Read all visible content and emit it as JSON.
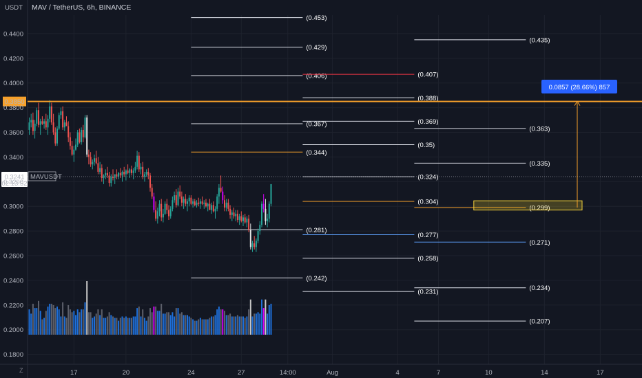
{
  "header": {
    "unit": "USDT",
    "title": "MAV / TetherUS, 6h, BINANCE"
  },
  "footer": {
    "zoom_label": "Z"
  },
  "colors": {
    "background": "#131722",
    "up": "#26a69a",
    "down": "#ef5350",
    "magenta": "#d500f9",
    "white_candle": "#e6e6e6",
    "vol_blue": "#1e6fd9",
    "vol_gray": "#5d606b",
    "orange": "#f7a12b",
    "fib_white": "#e0e3eb",
    "fib_red": "#f23645",
    "fib_blue": "#5b9cf6",
    "measure": "#2962ff"
  },
  "chart_data": {
    "type": "candlestick",
    "ylim": [
      0.172,
      0.455
    ],
    "y_ticks": [
      "0.4400",
      "0.4200",
      "0.4000",
      "0.3800",
      "0.3600",
      "0.3400",
      "0.3200",
      "0.3000",
      "0.2800",
      "0.2600",
      "0.2400",
      "0.2200",
      "0.2000",
      "0.1800"
    ],
    "y_tick_values": [
      0.44,
      0.42,
      0.4,
      0.38,
      0.36,
      0.34,
      0.32,
      0.3,
      0.28,
      0.26,
      0.24,
      0.22,
      0.2,
      0.18
    ],
    "x_ticks": [
      "17",
      "20",
      "24",
      "27",
      "14:00",
      "Aug",
      "4",
      "7",
      "10",
      "14",
      "17"
    ],
    "x_tick_index": [
      24,
      52,
      87,
      114,
      139,
      163,
      198,
      220,
      247,
      277,
      307
    ],
    "current_price": {
      "label": "0.3241",
      "value": 0.3241,
      "symbol": "MAVUSDT",
      "countdown": "02:13:52"
    },
    "horizontal_level": {
      "label": "0.3850",
      "value": 0.385
    },
    "measure": {
      "label": "0.0857 (28.66%) 857",
      "from": 0.299,
      "to": 0.385
    },
    "zone": {
      "low": 0.297,
      "high": 0.3045
    },
    "fib_sets": [
      {
        "x0": 87,
        "x1": 147,
        "levels": [
          {
            "value": 0.453,
            "label": "(0.453)",
            "kind": "white"
          },
          {
            "value": 0.429,
            "label": "(0.429)",
            "kind": "white"
          },
          {
            "value": 0.406,
            "label": "(0.406)",
            "kind": "white"
          },
          {
            "value": 0.367,
            "label": "(0.367)",
            "kind": "white"
          },
          {
            "value": 0.344,
            "label": "(0.344)",
            "kind": "orange"
          },
          {
            "value": 0.281,
            "label": "(0.281)",
            "kind": "white"
          },
          {
            "value": 0.242,
            "label": "(0.242)",
            "kind": "white"
          }
        ]
      },
      {
        "x0": 147,
        "x1": 207,
        "levels": [
          {
            "value": 0.407,
            "label": "(0.407)",
            "kind": "red"
          },
          {
            "value": 0.388,
            "label": "(0.388)",
            "kind": "white"
          },
          {
            "value": 0.369,
            "label": "(0.369)",
            "kind": "white"
          },
          {
            "value": 0.35,
            "label": "(0.35)",
            "kind": "white"
          },
          {
            "value": 0.324,
            "label": "(0.324)",
            "kind": "white"
          },
          {
            "value": 0.304,
            "label": "(0.304)",
            "kind": "orange"
          },
          {
            "value": 0.277,
            "label": "(0.277)",
            "kind": "blue"
          },
          {
            "value": 0.258,
            "label": "(0.258)",
            "kind": "white"
          },
          {
            "value": 0.231,
            "label": "(0.231)",
            "kind": "white"
          }
        ]
      },
      {
        "x0": 207,
        "x1": 267,
        "levels": [
          {
            "value": 0.435,
            "label": "(0.435)",
            "kind": "white"
          },
          {
            "value": 0.363,
            "label": "(0.363)",
            "kind": "white"
          },
          {
            "value": 0.335,
            "label": "(0.335)",
            "kind": "white"
          },
          {
            "value": 0.299,
            "label": "(0.299)",
            "kind": "orange"
          },
          {
            "value": 0.271,
            "label": "(0.271)",
            "kind": "blue"
          },
          {
            "value": 0.234,
            "label": "(0.234)",
            "kind": "white"
          },
          {
            "value": 0.207,
            "label": "(0.207)",
            "kind": "white"
          }
        ]
      }
    ],
    "candles": [
      [
        0.362,
        0.372,
        0.358,
        0.368
      ],
      [
        0.368,
        0.375,
        0.364,
        0.37
      ],
      [
        0.37,
        0.376,
        0.358,
        0.361
      ],
      [
        0.361,
        0.37,
        0.355,
        0.367
      ],
      [
        0.367,
        0.38,
        0.365,
        0.378
      ],
      [
        0.378,
        0.384,
        0.364,
        0.366
      ],
      [
        0.366,
        0.371,
        0.358,
        0.369
      ],
      [
        0.369,
        0.373,
        0.366,
        0.367
      ],
      [
        0.367,
        0.371,
        0.363,
        0.369
      ],
      [
        0.369,
        0.375,
        0.362,
        0.364
      ],
      [
        0.364,
        0.374,
        0.358,
        0.371
      ],
      [
        0.371,
        0.386,
        0.368,
        0.381
      ],
      [
        0.381,
        0.384,
        0.366,
        0.368
      ],
      [
        0.368,
        0.375,
        0.358,
        0.36
      ],
      [
        0.36,
        0.364,
        0.349,
        0.351
      ],
      [
        0.351,
        0.365,
        0.349,
        0.363
      ],
      [
        0.363,
        0.376,
        0.362,
        0.374
      ],
      [
        0.374,
        0.38,
        0.371,
        0.377
      ],
      [
        0.377,
        0.381,
        0.362,
        0.364
      ],
      [
        0.364,
        0.37,
        0.361,
        0.368
      ],
      [
        0.368,
        0.373,
        0.365,
        0.365
      ],
      [
        0.365,
        0.369,
        0.352,
        0.356
      ],
      [
        0.356,
        0.36,
        0.346,
        0.349
      ],
      [
        0.349,
        0.353,
        0.341,
        0.342
      ],
      [
        0.342,
        0.349,
        0.336,
        0.346
      ],
      [
        0.346,
        0.355,
        0.345,
        0.35
      ],
      [
        0.35,
        0.362,
        0.348,
        0.36
      ],
      [
        0.36,
        0.363,
        0.351,
        0.352
      ],
      [
        0.352,
        0.364,
        0.35,
        0.362
      ],
      [
        0.362,
        0.366,
        0.352,
        0.356
      ],
      [
        0.356,
        0.374,
        0.355,
        0.372
      ],
      [
        0.372,
        0.374,
        0.34,
        0.342
      ],
      [
        0.342,
        0.346,
        0.334,
        0.34
      ],
      [
        0.34,
        0.344,
        0.332,
        0.334
      ],
      [
        0.334,
        0.338,
        0.33,
        0.336
      ],
      [
        0.336,
        0.342,
        0.333,
        0.339
      ],
      [
        0.339,
        0.345,
        0.334,
        0.335
      ],
      [
        0.335,
        0.34,
        0.326,
        0.328
      ],
      [
        0.328,
        0.336,
        0.326,
        0.331
      ],
      [
        0.331,
        0.334,
        0.32,
        0.323
      ],
      [
        0.323,
        0.326,
        0.318,
        0.325
      ],
      [
        0.325,
        0.33,
        0.322,
        0.327
      ],
      [
        0.327,
        0.332,
        0.323,
        0.325
      ],
      [
        0.325,
        0.328,
        0.316,
        0.319
      ],
      [
        0.319,
        0.326,
        0.316,
        0.324
      ],
      [
        0.324,
        0.33,
        0.321,
        0.323
      ],
      [
        0.323,
        0.326,
        0.318,
        0.326
      ],
      [
        0.326,
        0.33,
        0.322,
        0.324
      ],
      [
        0.324,
        0.328,
        0.322,
        0.327
      ],
      [
        0.327,
        0.331,
        0.323,
        0.325
      ],
      [
        0.325,
        0.329,
        0.32,
        0.328
      ],
      [
        0.328,
        0.332,
        0.324,
        0.326
      ],
      [
        0.326,
        0.33,
        0.321,
        0.329
      ],
      [
        0.329,
        0.334,
        0.326,
        0.327
      ],
      [
        0.327,
        0.331,
        0.323,
        0.33
      ],
      [
        0.33,
        0.333,
        0.325,
        0.327
      ],
      [
        0.327,
        0.331,
        0.322,
        0.329
      ],
      [
        0.329,
        0.336,
        0.327,
        0.332
      ],
      [
        0.332,
        0.345,
        0.33,
        0.341
      ],
      [
        0.341,
        0.344,
        0.328,
        0.33
      ],
      [
        0.33,
        0.335,
        0.326,
        0.332
      ],
      [
        0.332,
        0.336,
        0.322,
        0.324
      ],
      [
        0.324,
        0.328,
        0.32,
        0.326
      ],
      [
        0.326,
        0.33,
        0.324,
        0.328
      ],
      [
        0.328,
        0.331,
        0.322,
        0.325
      ],
      [
        0.325,
        0.327,
        0.312,
        0.315
      ],
      [
        0.315,
        0.318,
        0.306,
        0.308
      ],
      [
        0.308,
        0.311,
        0.295,
        0.297
      ],
      [
        0.297,
        0.304,
        0.288,
        0.29
      ],
      [
        0.29,
        0.299,
        0.286,
        0.296
      ],
      [
        0.296,
        0.305,
        0.292,
        0.302
      ],
      [
        0.302,
        0.306,
        0.288,
        0.291
      ],
      [
        0.291,
        0.298,
        0.287,
        0.294
      ],
      [
        0.294,
        0.304,
        0.293,
        0.302
      ],
      [
        0.302,
        0.306,
        0.294,
        0.297
      ],
      [
        0.297,
        0.301,
        0.289,
        0.292
      ],
      [
        0.292,
        0.3,
        0.29,
        0.298
      ],
      [
        0.298,
        0.308,
        0.296,
        0.305
      ],
      [
        0.305,
        0.312,
        0.303,
        0.309
      ],
      [
        0.309,
        0.314,
        0.299,
        0.301
      ],
      [
        0.301,
        0.315,
        0.3,
        0.312
      ],
      [
        0.312,
        0.317,
        0.306,
        0.308
      ],
      [
        0.308,
        0.312,
        0.3,
        0.303
      ],
      [
        0.303,
        0.308,
        0.298,
        0.306
      ],
      [
        0.306,
        0.31,
        0.3,
        0.302
      ],
      [
        0.302,
        0.306,
        0.296,
        0.304
      ],
      [
        0.304,
        0.309,
        0.3,
        0.307
      ],
      [
        0.307,
        0.309,
        0.301,
        0.302
      ],
      [
        0.302,
        0.306,
        0.299,
        0.304
      ],
      [
        0.304,
        0.306,
        0.3,
        0.301
      ],
      [
        0.301,
        0.305,
        0.299,
        0.303
      ],
      [
        0.303,
        0.307,
        0.3,
        0.302
      ],
      [
        0.302,
        0.306,
        0.298,
        0.304
      ],
      [
        0.304,
        0.308,
        0.301,
        0.302
      ],
      [
        0.302,
        0.305,
        0.298,
        0.303
      ],
      [
        0.303,
        0.306,
        0.299,
        0.3
      ],
      [
        0.3,
        0.303,
        0.296,
        0.302
      ],
      [
        0.302,
        0.306,
        0.298,
        0.297
      ],
      [
        0.297,
        0.303,
        0.294,
        0.301
      ],
      [
        0.301,
        0.304,
        0.295,
        0.296
      ],
      [
        0.296,
        0.3,
        0.29,
        0.298
      ],
      [
        0.298,
        0.31,
        0.296,
        0.308
      ],
      [
        0.308,
        0.318,
        0.302,
        0.315
      ],
      [
        0.315,
        0.325,
        0.311,
        0.312
      ],
      [
        0.312,
        0.316,
        0.302,
        0.305
      ],
      [
        0.305,
        0.309,
        0.296,
        0.299
      ],
      [
        0.299,
        0.306,
        0.296,
        0.303
      ],
      [
        0.303,
        0.306,
        0.296,
        0.298
      ],
      [
        0.298,
        0.301,
        0.29,
        0.293
      ],
      [
        0.293,
        0.297,
        0.288,
        0.295
      ],
      [
        0.295,
        0.299,
        0.29,
        0.292
      ],
      [
        0.292,
        0.297,
        0.288,
        0.294
      ],
      [
        0.294,
        0.297,
        0.287,
        0.289
      ],
      [
        0.289,
        0.294,
        0.285,
        0.292
      ],
      [
        0.292,
        0.296,
        0.287,
        0.288
      ],
      [
        0.288,
        0.293,
        0.284,
        0.291
      ],
      [
        0.291,
        0.294,
        0.286,
        0.287
      ],
      [
        0.287,
        0.292,
        0.283,
        0.29
      ],
      [
        0.29,
        0.293,
        0.279,
        0.281
      ],
      [
        0.281,
        0.286,
        0.265,
        0.267
      ],
      [
        0.267,
        0.272,
        0.263,
        0.27
      ],
      [
        0.27,
        0.276,
        0.265,
        0.267
      ],
      [
        0.267,
        0.274,
        0.263,
        0.272
      ],
      [
        0.272,
        0.282,
        0.27,
        0.28
      ],
      [
        0.28,
        0.288,
        0.277,
        0.285
      ],
      [
        0.285,
        0.304,
        0.283,
        0.302
      ],
      [
        0.302,
        0.31,
        0.295,
        0.298
      ],
      [
        0.298,
        0.306,
        0.285,
        0.288
      ],
      [
        0.288,
        0.294,
        0.283,
        0.29
      ],
      [
        0.29,
        0.304,
        0.287,
        0.302
      ],
      [
        0.302,
        0.318,
        0.3,
        0.318
      ]
    ]
  }
}
